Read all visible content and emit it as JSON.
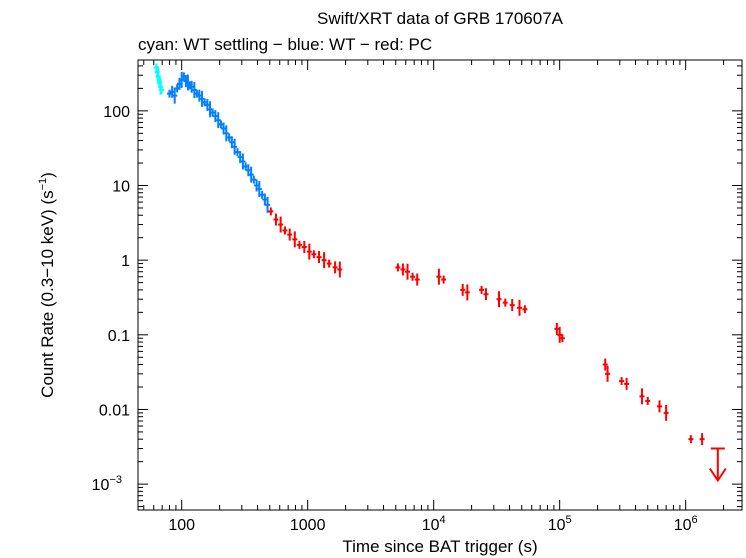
{
  "chart_data": {
    "type": "scatter",
    "title": "Swift/XRT data of GRB 170607A",
    "subtitle": "cyan: WT settling − blue: WT − red: PC",
    "xlabel": "Time since BAT trigger (s)",
    "ylabel": "Count Rate (0.3−10 keV) (s",
    "ylabel_sup": "−1",
    "ylabel_close": ")",
    "xscale": "log",
    "yscale": "log",
    "xlim": [
      45,
      2800000
    ],
    "ylim": [
      0.00045,
      480
    ],
    "x_ticks": [
      {
        "value": 100,
        "base": "100",
        "exp": ""
      },
      {
        "value": 1000,
        "base": "1000",
        "exp": ""
      },
      {
        "value": 10000,
        "base": "10",
        "exp": "4"
      },
      {
        "value": 100000,
        "base": "10",
        "exp": "5"
      },
      {
        "value": 1000000,
        "base": "10",
        "exp": "6"
      }
    ],
    "y_ticks": [
      {
        "value": 100,
        "base": "100",
        "exp": ""
      },
      {
        "value": 10,
        "base": "10",
        "exp": ""
      },
      {
        "value": 1,
        "base": "1",
        "exp": ""
      },
      {
        "value": 0.1,
        "base": "0.1",
        "exp": ""
      },
      {
        "value": 0.01,
        "base": "0.01",
        "exp": ""
      },
      {
        "value": 0.001,
        "base": "10",
        "exp": "−3"
      }
    ],
    "series": [
      {
        "name": "WT settling",
        "color": "#00ffff",
        "points": [
          [
            63,
            380
          ],
          [
            64,
            330
          ],
          [
            65,
            290
          ],
          [
            66,
            260
          ],
          [
            67,
            240
          ],
          [
            68,
            210
          ],
          [
            69,
            190
          ]
        ]
      },
      {
        "name": "WT",
        "color": "#0080ff",
        "points": [
          [
            80,
            170
          ],
          [
            84,
            180
          ],
          [
            88,
            160
          ],
          [
            92,
            200
          ],
          [
            96,
            230
          ],
          [
            100,
            260
          ],
          [
            104,
            290
          ],
          [
            108,
            250
          ],
          [
            112,
            240
          ],
          [
            116,
            220
          ],
          [
            120,
            210
          ],
          [
            126,
            190
          ],
          [
            132,
            170
          ],
          [
            138,
            160
          ],
          [
            145,
            145
          ],
          [
            152,
            130
          ],
          [
            160,
            120
          ],
          [
            168,
            105
          ],
          [
            176,
            95
          ],
          [
            185,
            85
          ],
          [
            195,
            75
          ],
          [
            205,
            66
          ],
          [
            215,
            58
          ],
          [
            226,
            50
          ],
          [
            238,
            44
          ],
          [
            250,
            38
          ],
          [
            263,
            33
          ],
          [
            277,
            28
          ],
          [
            291,
            24
          ],
          [
            306,
            21
          ],
          [
            322,
            18
          ],
          [
            338,
            16
          ],
          [
            356,
            14
          ],
          [
            374,
            12
          ],
          [
            393,
            10
          ],
          [
            413,
            9
          ],
          [
            435,
            7.5
          ],
          [
            457,
            6.5
          ],
          [
            480,
            5.5
          ]
        ]
      },
      {
        "name": "PC",
        "color": "#ff0000",
        "points": [
          [
            510,
            4.5
          ],
          [
            560,
            3.5
          ],
          [
            610,
            3.0
          ],
          [
            660,
            2.5
          ],
          [
            720,
            2.2
          ],
          [
            790,
            1.9
          ],
          [
            860,
            1.6
          ],
          [
            940,
            1.5
          ],
          [
            1030,
            1.3
          ],
          [
            1120,
            1.2
          ],
          [
            1230,
            1.1
          ],
          [
            1350,
            1.0
          ],
          [
            1480,
            0.9
          ],
          [
            1650,
            0.8
          ],
          [
            1800,
            0.75
          ],
          [
            5200,
            0.8
          ],
          [
            5700,
            0.75
          ],
          [
            6200,
            0.7
          ],
          [
            6800,
            0.6
          ],
          [
            7400,
            0.55
          ],
          [
            11000,
            0.6
          ],
          [
            12000,
            0.55
          ],
          [
            17000,
            0.4
          ],
          [
            18500,
            0.37
          ],
          [
            24000,
            0.4
          ],
          [
            26000,
            0.35
          ],
          [
            33000,
            0.3
          ],
          [
            37000,
            0.27
          ],
          [
            42000,
            0.25
          ],
          [
            48000,
            0.23
          ],
          [
            53000,
            0.22
          ],
          [
            95000,
            0.12
          ],
          [
            100000,
            0.1
          ],
          [
            105000,
            0.09
          ],
          [
            230000,
            0.04
          ],
          [
            240000,
            0.03
          ],
          [
            310000,
            0.024
          ],
          [
            340000,
            0.022
          ],
          [
            450000,
            0.015
          ],
          [
            500000,
            0.013
          ],
          [
            620000,
            0.011
          ],
          [
            700000,
            0.009
          ],
          [
            1100000,
            0.004
          ],
          [
            1350000,
            0.004
          ]
        ]
      }
    ],
    "upper_limits": [
      {
        "series": "PC",
        "color": "#ff0000",
        "x": 1800000,
        "y": 0.003
      }
    ]
  }
}
